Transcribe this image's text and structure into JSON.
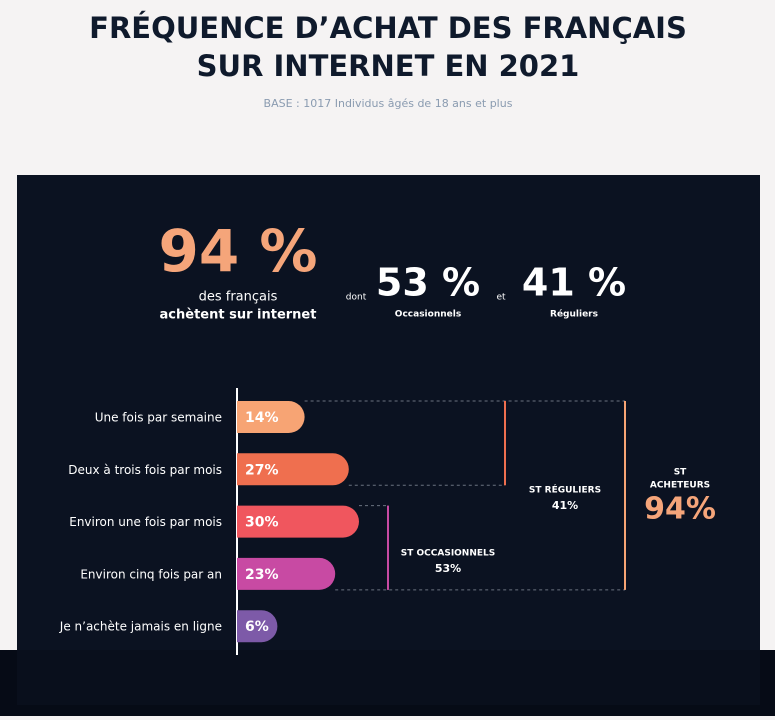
{
  "header": {
    "title_lines": [
      "FRÉQUENCE D’ACHAT DES FRANÇAIS",
      "SUR INTERNET EN 2021"
    ],
    "subtitle": "BASE : 1017 Individus âgés de 18 ans et plus"
  },
  "summary": {
    "total": "94 %",
    "total_line1": "des français",
    "total_line2": "achètent sur internet",
    "dont": "dont",
    "occasional": "53 %",
    "occasional_label": "Occasionnels",
    "et": "et",
    "regular": "41 %",
    "regular_label": "Réguliers"
  },
  "chart_data": {
    "type": "bar",
    "orientation": "horizontal",
    "categories": [
      "Une fois par semaine",
      "Deux à trois fois par mois",
      "Environ une fois par mois",
      "Environ cinq fois par an",
      "Je n’achète jamais en ligne"
    ],
    "values": [
      14,
      27,
      30,
      23,
      6
    ],
    "value_labels": [
      "14%",
      "27%",
      "30%",
      "23%",
      "6%"
    ],
    "colors": [
      "#f7a474",
      "#ef6f4f",
      "#f0565e",
      "#c84aa3",
      "#7d5aa8"
    ],
    "groups": [
      {
        "label": [
          "ST RÉGULIERS"
        ],
        "total": "41%"
      },
      {
        "label": [
          "ST OCCASIONNELS"
        ],
        "total": "53%"
      },
      {
        "label": [
          "ST",
          "ACHETEURS"
        ],
        "total": "94%"
      }
    ]
  }
}
